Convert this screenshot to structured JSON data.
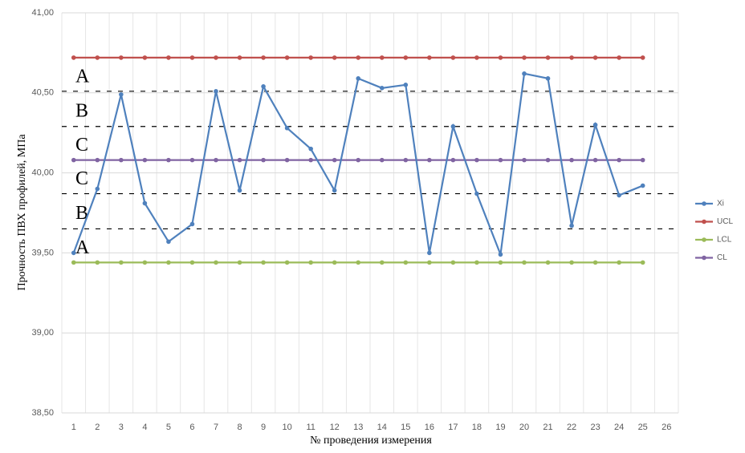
{
  "chart_data": {
    "type": "line",
    "y_label": "Прочность ПВХ профилей, МПа",
    "x_label": "№ проведения измерения",
    "categories": [
      "1",
      "2",
      "3",
      "4",
      "5",
      "6",
      "7",
      "8",
      "9",
      "10",
      "11",
      "12",
      "13",
      "14",
      "15",
      "16",
      "17",
      "18",
      "19",
      "20",
      "21",
      "22",
      "23",
      "24",
      "25",
      "26"
    ],
    "series": [
      {
        "name": "Xi",
        "color": "#4f81bd",
        "values": [
          39.5,
          39.9,
          40.49,
          39.81,
          39.57,
          39.68,
          40.51,
          39.89,
          40.54,
          40.28,
          40.15,
          39.89,
          40.59,
          40.53,
          40.55,
          39.5,
          40.29,
          39.87,
          39.49,
          40.62,
          40.59,
          39.67,
          40.3,
          39.86,
          39.92,
          null
        ]
      },
      {
        "name": "UCL",
        "color": "#c0504d",
        "values": [
          40.72,
          40.72,
          40.72,
          40.72,
          40.72,
          40.72,
          40.72,
          40.72,
          40.72,
          40.72,
          40.72,
          40.72,
          40.72,
          40.72,
          40.72,
          40.72,
          40.72,
          40.72,
          40.72,
          40.72,
          40.72,
          40.72,
          40.72,
          40.72,
          40.72,
          null
        ]
      },
      {
        "name": "LCL",
        "color": "#9bbb59",
        "values": [
          39.44,
          39.44,
          39.44,
          39.44,
          39.44,
          39.44,
          39.44,
          39.44,
          39.44,
          39.44,
          39.44,
          39.44,
          39.44,
          39.44,
          39.44,
          39.44,
          39.44,
          39.44,
          39.44,
          39.44,
          39.44,
          39.44,
          39.44,
          39.44,
          39.44,
          null
        ]
      },
      {
        "name": "CL",
        "color": "#8064a2",
        "values": [
          40.08,
          40.08,
          40.08,
          40.08,
          40.08,
          40.08,
          40.08,
          40.08,
          40.08,
          40.08,
          40.08,
          40.08,
          40.08,
          40.08,
          40.08,
          40.08,
          40.08,
          40.08,
          40.08,
          40.08,
          40.08,
          40.08,
          40.08,
          40.08,
          40.08,
          null
        ]
      }
    ],
    "zone_lines": [
      40.51,
      40.29,
      39.87,
      39.65
    ],
    "zone_labels": [
      "A",
      "B",
      "C",
      "C",
      "B",
      "A"
    ],
    "ylim": [
      38.5,
      41
    ],
    "yticks": [
      {
        "value": 38.5,
        "label": "38,50"
      },
      {
        "value": 39,
        "label": "39,00"
      },
      {
        "value": 39.5,
        "label": "39,50"
      },
      {
        "value": 40,
        "label": "40,00"
      },
      {
        "value": 40.5,
        "label": "40,50"
      },
      {
        "value": 41,
        "label": "41,00"
      }
    ],
    "grid": true,
    "legend": "right"
  }
}
